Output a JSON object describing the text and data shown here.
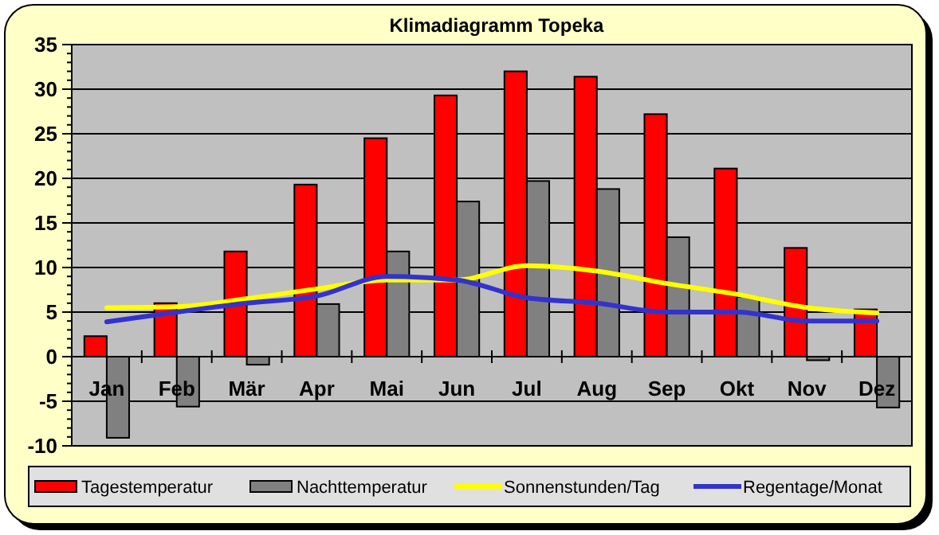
{
  "chart_data": {
    "type": "bar",
    "title": "Klimadiagramm Topeka",
    "categories": [
      "Jan",
      "Feb",
      "Mär",
      "Apr",
      "Mai",
      "Jun",
      "Jul",
      "Aug",
      "Sep",
      "Okt",
      "Nov",
      "Dez"
    ],
    "series": [
      {
        "name": "Tagestemperatur",
        "color": "#ff0000",
        "values": [
          2.3,
          6.0,
          11.8,
          19.3,
          24.5,
          29.3,
          32.0,
          31.4,
          27.2,
          21.1,
          12.2,
          5.3
        ]
      },
      {
        "name": "Nachttemperatur",
        "color": "#808080",
        "values": [
          -9.1,
          -5.6,
          -0.9,
          5.9,
          11.8,
          17.4,
          19.7,
          18.8,
          13.4,
          6.7,
          -0.4,
          -5.7
        ]
      },
      {
        "name": "Sonnenstunden/Tag",
        "type": "line",
        "color": "#ffff00",
        "values": [
          5.5,
          5.6,
          6.5,
          7.6,
          8.6,
          8.6,
          10.2,
          9.6,
          8.2,
          7.0,
          5.5,
          4.9
        ]
      },
      {
        "name": "Regentage/Monat",
        "type": "line",
        "color": "#3333cc",
        "values": [
          3.9,
          5.0,
          6.0,
          6.8,
          9.0,
          8.6,
          6.6,
          6.0,
          5.0,
          5.0,
          4.0,
          4.0
        ]
      }
    ],
    "ylim": [
      -10,
      35
    ],
    "yticks": [
      -10,
      -5,
      0,
      5,
      10,
      15,
      20,
      25,
      30,
      35
    ],
    "grid": "y",
    "legend": "bottom"
  }
}
